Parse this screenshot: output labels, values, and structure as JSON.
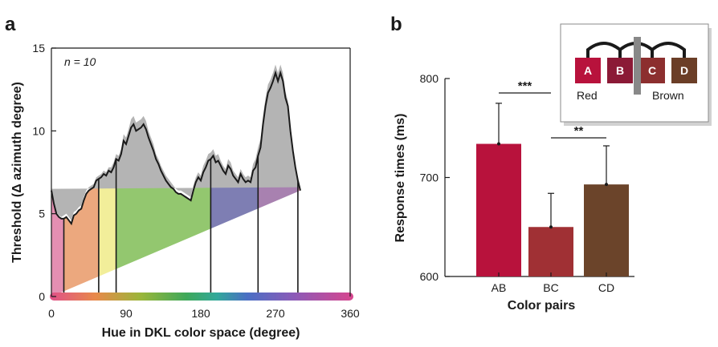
{
  "chart_data": [
    {
      "panel": "a",
      "type": "area",
      "annotation": "n = 10",
      "xlabel": "Hue in DKL color space (degree)",
      "ylabel": "Threshold (Δ azimuth degree)",
      "xlim": [
        0,
        360
      ],
      "ylim": [
        0,
        15
      ],
      "xticks": [
        "0",
        "90",
        "180",
        "270",
        "360"
      ],
      "yticks": [
        "0",
        "5",
        "10",
        "15"
      ],
      "x": [
        0,
        3,
        6,
        9,
        12,
        15,
        18,
        21,
        24,
        27,
        30,
        33,
        36,
        39,
        42,
        45,
        48,
        51,
        54,
        57,
        60,
        63,
        66,
        69,
        72,
        75,
        78,
        81,
        84,
        87,
        90,
        93,
        96,
        99,
        102,
        105,
        108,
        111,
        114,
        117,
        120,
        123,
        126,
        129,
        132,
        135,
        138,
        141,
        144,
        147,
        150,
        153,
        156,
        159,
        162,
        165,
        168,
        171,
        174,
        177,
        180,
        183,
        186,
        189,
        192,
        195,
        198,
        201,
        204,
        207,
        210,
        213,
        216,
        219,
        222,
        225,
        228,
        231,
        234,
        237,
        240,
        243,
        246,
        249,
        252,
        255,
        258,
        261,
        264,
        267,
        270,
        273,
        276,
        279,
        282,
        285,
        288,
        291,
        294,
        297,
        300,
        303,
        306,
        309,
        312,
        315,
        318,
        321,
        324,
        327,
        330,
        333,
        336,
        339,
        342,
        345,
        348,
        351,
        354,
        357,
        360
      ],
      "threshold": [
        6.4,
        5.6,
        5.0,
        4.8,
        4.7,
        4.7,
        4.8,
        4.6,
        4.4,
        4.9,
        5.0,
        5.2,
        5.3,
        5.8,
        6.2,
        6.4,
        6.5,
        6.6,
        7.0,
        7.1,
        7.2,
        7.4,
        7.3,
        7.6,
        7.5,
        7.8,
        8.3,
        8.2,
        8.6,
        9.4,
        9.2,
        9.7,
        10.2,
        10.4,
        10.0,
        10.1,
        10.2,
        10.4,
        10.1,
        9.6,
        9.2,
        8.8,
        8.3,
        8.0,
        7.6,
        7.3,
        7.0,
        6.8,
        6.6,
        6.5,
        6.3,
        6.2,
        6.2,
        6.1,
        6.0,
        5.9,
        5.8,
        6.4,
        6.9,
        7.2,
        7.0,
        7.5,
        7.8,
        8.2,
        8.3,
        8.5,
        8.1,
        8.2,
        7.9,
        7.6,
        7.4,
        7.9,
        7.7,
        7.3,
        7.1,
        6.9,
        7.4,
        7.1,
        6.9,
        7.0,
        6.9,
        7.6,
        7.8,
        8.5,
        9.0,
        10.4,
        11.5,
        12.3,
        12.6,
        13.0,
        13.5,
        13.0,
        13.5,
        13.0,
        12.0,
        11.5,
        10.0,
        8.8,
        7.8,
        7.0,
        6.4
      ],
      "sem_upper": [
        6.5,
        5.7,
        5.1,
        4.9,
        4.8,
        4.9,
        5.0,
        4.8,
        4.6,
        5.1,
        5.2,
        5.4,
        5.5,
        6.0,
        6.4,
        6.6,
        6.7,
        6.8,
        7.2,
        7.3,
        7.4,
        7.6,
        7.5,
        7.8,
        7.8,
        8.1,
        8.6,
        8.5,
        8.9,
        9.8,
        9.6,
        10.1,
        10.7,
        10.9,
        10.5,
        10.6,
        10.7,
        10.9,
        10.6,
        10.0,
        9.6,
        9.2,
        8.6,
        8.3,
        7.9,
        7.6,
        7.3,
        7.1,
        6.9,
        6.7,
        6.5,
        6.4,
        6.4,
        6.3,
        6.2,
        6.1,
        6.0,
        6.7,
        7.2,
        7.5,
        7.3,
        7.9,
        8.2,
        8.6,
        8.7,
        8.9,
        8.5,
        8.6,
        8.2,
        7.9,
        7.7,
        8.3,
        8.1,
        7.6,
        7.4,
        7.2,
        7.7,
        7.4,
        7.2,
        7.3,
        7.2,
        8.0,
        8.3,
        9.0,
        9.5,
        10.9,
        12.0,
        12.8,
        13.1,
        13.5,
        14.0,
        13.5,
        14.0,
        13.5,
        12.4,
        11.8,
        10.2,
        9.0,
        8.0,
        7.2,
        6.6
      ],
      "hue_bands": [
        {
          "from": 0,
          "to": 15,
          "color": "#e48fb2"
        },
        {
          "from": 15,
          "to": 57,
          "color": "#eca87e"
        },
        {
          "from": 57,
          "to": 78,
          "color": "#f2ee9a"
        },
        {
          "from": 78,
          "to": 192,
          "color": "#93c76f"
        },
        {
          "from": 192,
          "to": 249,
          "color": "#7e7eb3"
        },
        {
          "from": 249,
          "to": 297,
          "color": "#a881b0"
        },
        {
          "from": 297,
          "to": 360,
          "color": "#e598b6"
        }
      ],
      "line_color": "#1a1a1a",
      "sem_color": "#b4b4b4"
    },
    {
      "panel": "b",
      "type": "bar",
      "categories": [
        "AB",
        "BC",
        "CD"
      ],
      "values": [
        734,
        650,
        693
      ],
      "error_upper": [
        775,
        684,
        732
      ],
      "bar_colors": [
        "#b8123c",
        "#a03034",
        "#6b442a"
      ],
      "xlabel": "Color pairs",
      "ylabel": "Response times (ms)",
      "ylim": [
        600,
        800
      ],
      "yticks": [
        "600",
        "700",
        "800"
      ],
      "significance": [
        {
          "pair": [
            "AB",
            "BC"
          ],
          "label": "***"
        },
        {
          "pair": [
            "BC",
            "CD"
          ],
          "label": "**"
        }
      ],
      "legend": {
        "swatches": [
          {
            "label": "A",
            "color": "#b8123c"
          },
          {
            "label": "B",
            "color": "#8b1a36"
          },
          {
            "label": "C",
            "color": "#8c2f2f"
          },
          {
            "label": "D",
            "color": "#6b3e27"
          }
        ],
        "groups": [
          "Red",
          "Brown"
        ]
      }
    }
  ]
}
